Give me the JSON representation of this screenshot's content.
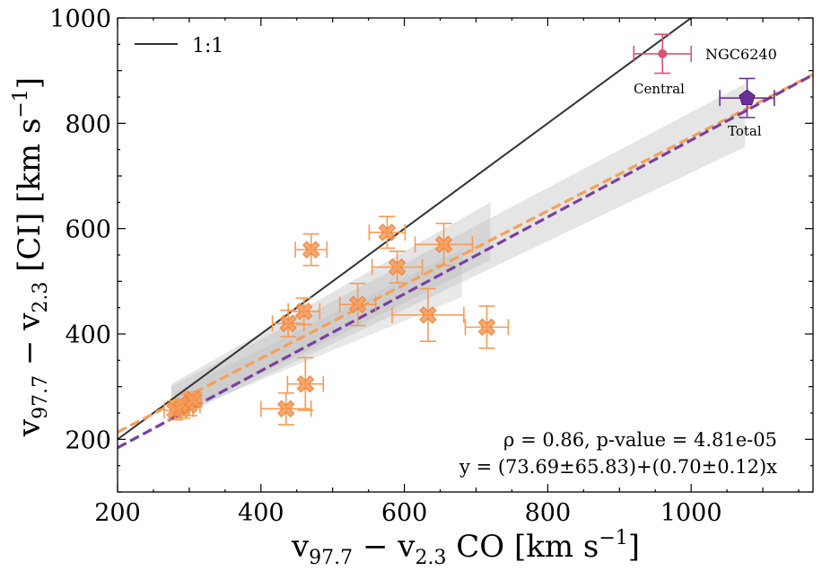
{
  "chart_data": {
    "type": "scatter",
    "xlabel": "v97.7 − v2.3 CO [km s⁻¹]",
    "ylabel": "v97.7 − v2.3 [CI] [km s⁻¹]",
    "xlabel_parts": {
      "main": "v",
      "sub": "97.7",
      "rest1": " − v",
      "sub2": "2.3",
      "rest2": " CO [km s",
      "sup": "−1",
      "end": "]"
    },
    "ylabel_parts": {
      "main": "v",
      "sub": "97.7",
      "rest1": " − v",
      "sub2": "2.3",
      "rest2": " [CI] [km s",
      "sup": "−1",
      "end": "]"
    },
    "xlim": [
      200,
      1170
    ],
    "ylim": [
      100,
      1000
    ],
    "xticks": [
      200,
      400,
      600,
      800,
      1000
    ],
    "yticks": [
      200,
      400,
      600,
      800,
      1000
    ],
    "xticks_minor": [
      300,
      500,
      700,
      900,
      1100
    ],
    "yticks_minor": [
      100,
      300,
      500,
      700,
      900
    ],
    "legend": {
      "placement": "top-left",
      "label": "1:1"
    },
    "one_to_one": {
      "x": [
        200,
        1000
      ],
      "y": [
        200,
        1000
      ],
      "color": "#333333"
    },
    "fits": [
      {
        "name": "orange-fit",
        "intercept": 73.69,
        "slope": 0.7,
        "x": [
          200,
          1170
        ],
        "color": "#f5a05a",
        "style": "dashed"
      },
      {
        "name": "purple-fit",
        "intercept": 38.0,
        "slope": 0.73,
        "x": [
          200,
          1170
        ],
        "color": "#7b3fa0",
        "style": "dashed"
      }
    ],
    "confidence_bands": [
      {
        "x": [
          275,
          720
        ],
        "y_lower": [
          240,
          540
        ],
        "y_upper": [
          305,
          650
        ],
        "color": "#bfbfbf",
        "opacity": 0.4
      },
      {
        "x": [
          275,
          1075
        ],
        "y_lower": [
          235,
          755
        ],
        "y_upper": [
          300,
          875
        ],
        "color": "#bfbfbf",
        "opacity": 0.4
      },
      {
        "x": [
          280,
          680
        ],
        "y_lower": [
          245,
          470
        ],
        "y_upper": [
          290,
          560
        ],
        "color": "#bfbfbf",
        "opacity": 0.35
      }
    ],
    "series": [
      {
        "name": "galaxies",
        "marker": "X",
        "color": "#f79a55",
        "points": [
          {
            "x": 280,
            "y": 255,
            "xerr": 15,
            "yerr": 18
          },
          {
            "x": 290,
            "y": 258,
            "xerr": 15,
            "yerr": 18
          },
          {
            "x": 300,
            "y": 265,
            "xerr": 15,
            "yerr": 20
          },
          {
            "x": 305,
            "y": 275,
            "xerr": 12,
            "yerr": 15
          },
          {
            "x": 435,
            "y": 258,
            "xerr": 35,
            "yerr": 30
          },
          {
            "x": 462,
            "y": 305,
            "xerr": 25,
            "yerr": 50
          },
          {
            "x": 438,
            "y": 420,
            "xerr": 22,
            "yerr": 25
          },
          {
            "x": 460,
            "y": 443,
            "xerr": 22,
            "yerr": 25
          },
          {
            "x": 470,
            "y": 560,
            "xerr": 22,
            "yerr": 30
          },
          {
            "x": 535,
            "y": 456,
            "xerr": 25,
            "yerr": 40
          },
          {
            "x": 576,
            "y": 593,
            "xerr": 25,
            "yerr": 30
          },
          {
            "x": 590,
            "y": 527,
            "xerr": 35,
            "yerr": 30
          },
          {
            "x": 655,
            "y": 570,
            "xerr": 40,
            "yerr": 40
          },
          {
            "x": 633,
            "y": 436,
            "xerr": 50,
            "yerr": 50
          },
          {
            "x": 715,
            "y": 413,
            "xerr": 30,
            "yerr": 40
          }
        ]
      },
      {
        "name": "NGC6240 Central",
        "marker": "circle",
        "color": "#d9536f",
        "points": [
          {
            "x": 960,
            "y": 932,
            "xerr": 40,
            "yerr": 37
          }
        ]
      },
      {
        "name": "NGC6240 Total",
        "marker": "pentagon",
        "color": "#6a2d9a",
        "points": [
          {
            "x": 1078,
            "y": 848,
            "xerr": 38,
            "yerr": 37
          }
        ]
      }
    ],
    "annotations": {
      "ngc_name": "NGC6240",
      "central": "Central",
      "total": "Total",
      "stats": "ρ = 0.86, p-value = 4.81e-05",
      "fit_eq": "y = (73.69±65.83)+(0.70±0.12)x"
    }
  }
}
